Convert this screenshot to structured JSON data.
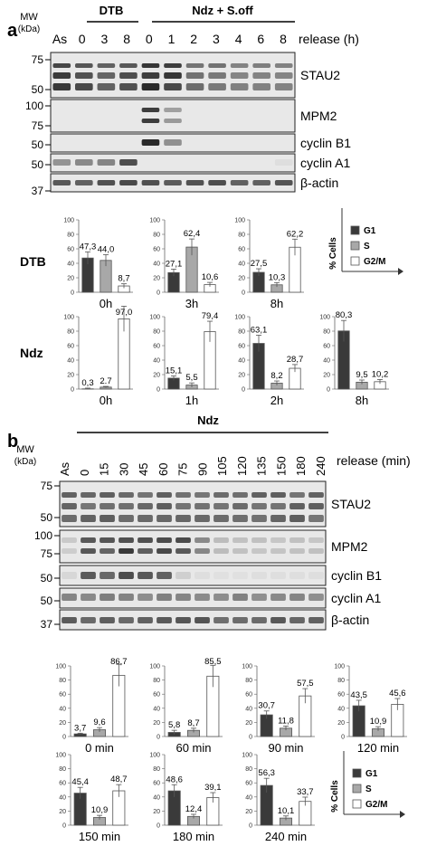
{
  "panel_a": {
    "letter": "a",
    "mw_label": "MW",
    "kda_label": "(kDa)",
    "group1_label": "DTB",
    "group2_label": "Ndz + S.off",
    "lanes": [
      "As",
      "0",
      "3",
      "8",
      "0",
      "1",
      "2",
      "3",
      "4",
      "6",
      "8"
    ],
    "release_label": "release (h)",
    "blots": [
      {
        "name": "STAU2",
        "mw": [
          "75",
          "50"
        ]
      },
      {
        "name": "MPM2",
        "mw": [
          "100",
          "75"
        ]
      },
      {
        "name": "cyclin B1",
        "mw": [
          "50"
        ]
      },
      {
        "name": "cyclin A1",
        "mw": [
          "50"
        ]
      },
      {
        "name": "β-actin",
        "mw": [
          "37"
        ]
      }
    ],
    "row_labels": [
      "DTB",
      "Ndz"
    ],
    "yticks": [
      "0",
      "20",
      "40",
      "60",
      "80",
      "100"
    ],
    "legend": {
      "items": [
        "G1",
        "S",
        "G2/M"
      ],
      "axis_label": "% Cells"
    }
  },
  "panel_b": {
    "letter": "b",
    "mw_label": "MW",
    "kda_label": "(kDa)",
    "group_label": "Ndz",
    "lanes": [
      "As",
      "0",
      "15",
      "30",
      "45",
      "60",
      "75",
      "90",
      "105",
      "120",
      "135",
      "150",
      "180",
      "240"
    ],
    "release_label": "release (min)",
    "blots": [
      {
        "name": "STAU2",
        "mw": [
          "75",
          "50"
        ]
      },
      {
        "name": "MPM2",
        "mw": [
          "100",
          "75"
        ]
      },
      {
        "name": "cyclin B1",
        "mw": [
          "50"
        ]
      },
      {
        "name": "cyclin A1",
        "mw": [
          "50"
        ]
      },
      {
        "name": "β-actin",
        "mw": [
          "37"
        ]
      }
    ],
    "yticks": [
      "0",
      "20",
      "40",
      "60",
      "80",
      "100"
    ],
    "legend": {
      "items": [
        "G1",
        "S",
        "G2/M"
      ],
      "axis_label": "% Cells"
    }
  },
  "colors": {
    "G1": "#3a3a3a",
    "S": "#a8a8a8",
    "G2/M": "#ffffff",
    "blot_bg": "#e8e8e8",
    "band": "#2a2a2a"
  },
  "chart_data": [
    {
      "type": "bar",
      "panel": "a",
      "row": "DTB",
      "categories": [
        "G1",
        "S",
        "G2/M"
      ],
      "title": "0h",
      "ylim": [
        0,
        100
      ],
      "values": [
        47.3,
        44.0,
        8.7
      ],
      "labels": [
        "47,3",
        "44,0",
        "8,7"
      ]
    },
    {
      "type": "bar",
      "panel": "a",
      "row": "DTB",
      "categories": [
        "G1",
        "S",
        "G2/M"
      ],
      "title": "3h",
      "ylim": [
        0,
        100
      ],
      "values": [
        27.1,
        62.4,
        10.6
      ],
      "labels": [
        "27,1",
        "62,4",
        "10,6"
      ]
    },
    {
      "type": "bar",
      "panel": "a",
      "row": "DTB",
      "categories": [
        "G1",
        "S",
        "G2/M"
      ],
      "title": "8h",
      "ylim": [
        0,
        100
      ],
      "values": [
        27.5,
        10.3,
        62.2
      ],
      "labels": [
        "27,5",
        "10,3",
        "62,2"
      ]
    },
    {
      "type": "bar",
      "panel": "a",
      "row": "Ndz",
      "categories": [
        "G1",
        "S",
        "G2/M"
      ],
      "title": "0h",
      "ylim": [
        0,
        100
      ],
      "values": [
        0.3,
        2.7,
        97.0
      ],
      "labels": [
        "0,3",
        "2.7",
        "97,0"
      ]
    },
    {
      "type": "bar",
      "panel": "a",
      "row": "Ndz",
      "categories": [
        "G1",
        "S",
        "G2/M"
      ],
      "title": "1h",
      "ylim": [
        0,
        100
      ],
      "values": [
        15.1,
        5.5,
        79.4
      ],
      "labels": [
        "15,1",
        "5,5",
        "79,4"
      ]
    },
    {
      "type": "bar",
      "panel": "a",
      "row": "Ndz",
      "categories": [
        "G1",
        "S",
        "G2/M"
      ],
      "title": "2h",
      "ylim": [
        0,
        100
      ],
      "values": [
        63.1,
        8.2,
        28.7
      ],
      "labels": [
        "63,1",
        "8,2",
        "28,7"
      ]
    },
    {
      "type": "bar",
      "panel": "a",
      "row": "Ndz",
      "categories": [
        "G1",
        "S",
        "G2/M"
      ],
      "title": "8h",
      "ylim": [
        0,
        100
      ],
      "values": [
        80.3,
        9.5,
        10.2
      ],
      "labels": [
        "80,3",
        "9,5",
        "10,2"
      ]
    },
    {
      "type": "bar",
      "panel": "b",
      "categories": [
        "G1",
        "S",
        "G2/M"
      ],
      "title": "0 min",
      "ylim": [
        0,
        100
      ],
      "values": [
        3.7,
        9.6,
        86.7
      ],
      "labels": [
        "3,7",
        "9,6",
        "86,7"
      ]
    },
    {
      "type": "bar",
      "panel": "b",
      "categories": [
        "G1",
        "S",
        "G2/M"
      ],
      "title": "60 min",
      "ylim": [
        0,
        100
      ],
      "values": [
        5.8,
        8.7,
        85.5
      ],
      "labels": [
        "5,8",
        "8,7",
        "85,5"
      ]
    },
    {
      "type": "bar",
      "panel": "b",
      "categories": [
        "G1",
        "S",
        "G2/M"
      ],
      "title": "90 min",
      "ylim": [
        0,
        100
      ],
      "values": [
        30.7,
        11.8,
        57.5
      ],
      "labels": [
        "30,7",
        "11,8",
        "57,5"
      ]
    },
    {
      "type": "bar",
      "panel": "b",
      "categories": [
        "G1",
        "S",
        "G2/M"
      ],
      "title": "120 min",
      "ylim": [
        0,
        100
      ],
      "values": [
        43.5,
        10.9,
        45.6
      ],
      "labels": [
        "43,5",
        "10,9",
        "45,6"
      ]
    },
    {
      "type": "bar",
      "panel": "b",
      "categories": [
        "G1",
        "S",
        "G2/M"
      ],
      "title": "150 min",
      "ylim": [
        0,
        100
      ],
      "values": [
        45.4,
        10.9,
        48.7
      ],
      "labels": [
        "45,4",
        "10,9",
        "48,7"
      ]
    },
    {
      "type": "bar",
      "panel": "b",
      "categories": [
        "G1",
        "S",
        "G2/M"
      ],
      "title": "180 min",
      "ylim": [
        0,
        100
      ],
      "values": [
        48.6,
        12.4,
        39.1
      ],
      "labels": [
        "48,6",
        "12,4",
        "39,1"
      ]
    },
    {
      "type": "bar",
      "panel": "b",
      "categories": [
        "G1",
        "S",
        "G2/M"
      ],
      "title": "240 min",
      "ylim": [
        0,
        100
      ],
      "values": [
        56.3,
        10.1,
        33.7
      ],
      "labels": [
        "56,3",
        "10,1",
        "33,7"
      ]
    }
  ]
}
